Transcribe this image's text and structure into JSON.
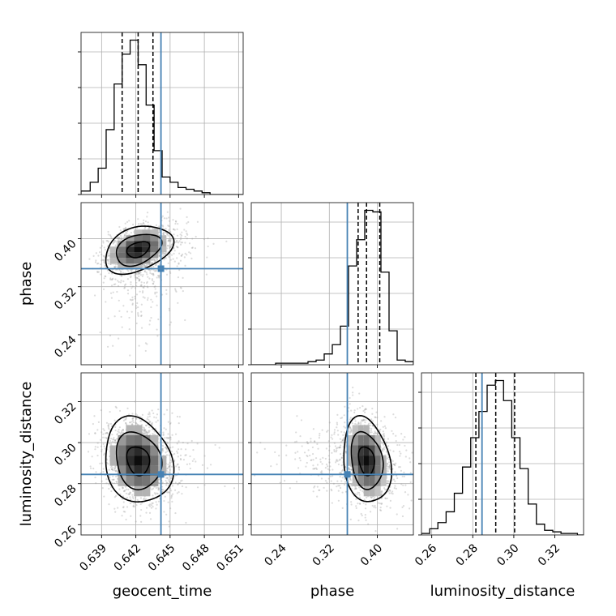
{
  "chart_data": {
    "type": "corner",
    "parameters": [
      "geocent_time",
      "phase",
      "luminosity_distance"
    ],
    "axis_labels": {
      "x": [
        "geocent_time",
        "phase",
        "luminosity_distance"
      ],
      "y": [
        "phase",
        "luminosity_distance"
      ]
    },
    "truth": {
      "geocent_time": 0.6442,
      "phase": 0.35,
      "luminosity_distance": 0.2845
    },
    "truth_color": "#4682b4",
    "contour_levels": 3,
    "ticks": {
      "geocent_time": {
        "values": [
          0.639,
          0.642,
          0.645,
          0.648,
          0.651
        ],
        "labels": [
          "0.639",
          "0.642",
          "0.645",
          "0.648",
          "0.651"
        ]
      },
      "phase": {
        "values": [
          0.24,
          0.32,
          0.4
        ],
        "labels": [
          "0.24",
          "0.32",
          "0.40"
        ]
      },
      "luminosity_distance": {
        "values": [
          0.26,
          0.28,
          0.3,
          0.32
        ],
        "labels": [
          "0.26",
          "0.28",
          "0.30",
          "0.32"
        ]
      }
    },
    "ranges": {
      "geocent_time": [
        0.6372,
        0.6514
      ],
      "phase": [
        0.19,
        0.46
      ],
      "luminosity_distance": [
        0.255,
        0.334
      ]
    },
    "quantiles": {
      "geocent_time": [
        0.6408,
        0.6422,
        0.6435
      ],
      "phase": [
        0.368,
        0.382,
        0.404
      ],
      "luminosity_distance": [
        0.2815,
        0.2912,
        0.3004
      ]
    },
    "histograms": {
      "geocent_time": {
        "edges": [
          0.6372,
          0.638,
          0.6387,
          0.6394,
          0.6401,
          0.6408,
          0.6415,
          0.6422,
          0.6429,
          0.6436,
          0.6443,
          0.645,
          0.6457,
          0.6464,
          0.6471,
          0.6478,
          0.6485,
          0.6492,
          0.6499,
          0.6506,
          0.6514
        ],
        "counts": [
          2,
          7,
          15,
          37,
          63,
          80,
          88,
          74,
          51,
          25,
          10,
          7,
          4,
          3,
          2,
          1,
          0,
          0,
          0,
          0
        ]
      },
      "phase": {
        "edges": [
          0.19,
          0.2035,
          0.217,
          0.2305,
          0.244,
          0.2575,
          0.271,
          0.2845,
          0.298,
          0.3115,
          0.325,
          0.3385,
          0.352,
          0.3655,
          0.379,
          0.3925,
          0.406,
          0.4195,
          0.433,
          0.4465,
          0.46
        ],
        "counts": [
          0,
          0,
          0,
          1,
          1,
          1,
          1,
          2,
          3,
          7,
          13,
          25,
          64,
          81,
          100,
          99,
          60,
          22,
          3,
          2
        ]
      },
      "luminosity_distance": {
        "edges": [
          0.255,
          0.259,
          0.263,
          0.267,
          0.271,
          0.275,
          0.279,
          0.283,
          0.287,
          0.291,
          0.295,
          0.299,
          0.303,
          0.307,
          0.311,
          0.315,
          0.319,
          0.323,
          0.327,
          0.331,
          0.334
        ],
        "counts": [
          1,
          4,
          8,
          15,
          27,
          44,
          63,
          80,
          97,
          100,
          87,
          63,
          43,
          20,
          7,
          3,
          2,
          1,
          1,
          0
        ]
      }
    },
    "grid": true
  }
}
